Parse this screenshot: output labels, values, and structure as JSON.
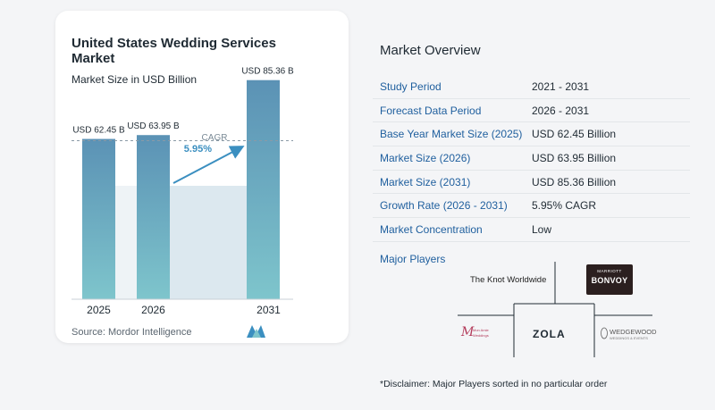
{
  "left_panel": {
    "title": "United States Wedding Services Market",
    "subtitle": "Market Size in USD Billion",
    "source": "Source: Mordor Intelligence",
    "cagr_label": "CAGR",
    "cagr_value": "5.95%"
  },
  "chart_data": {
    "type": "bar",
    "categories": [
      "2025",
      "2026",
      "2031"
    ],
    "values": [
      62.45,
      63.95,
      85.36
    ],
    "data_labels": [
      "USD 62.45 B",
      "USD 63.95 B",
      "USD 85.36 B"
    ],
    "title": "United States Wedding Services Market",
    "subtitle": "Market Size in USD Billion",
    "xlabel": "",
    "ylabel": "",
    "ylim": [
      0,
      90
    ],
    "grid": false,
    "annotation": "CAGR 5.95%",
    "colors": {
      "bar_top": "#5b92b5",
      "bar_bottom": "#7ec5cc",
      "arrow": "#3b8fc0",
      "band": "#dce8ef",
      "cagr_text": "#3b8fc0"
    }
  },
  "overview": {
    "title": "Market Overview",
    "rows": [
      {
        "label": "Study Period",
        "value": "2021 - 2031"
      },
      {
        "label": "Forecast Data Period",
        "value": "2026 - 2031"
      },
      {
        "label": "Base Year Market Size (2025)",
        "value": "USD 62.45 Billion"
      },
      {
        "label": "Market Size (2026)",
        "value": "USD 63.95 Billion"
      },
      {
        "label": "Market Size (2031)",
        "value": "USD 85.36 Billion"
      },
      {
        "label": "Growth Rate (2026 - 2031)",
        "value": "5.95% CAGR"
      },
      {
        "label": "Market Concentration",
        "value": "Low"
      }
    ]
  },
  "players": {
    "title": "Major Players",
    "names": [
      "The Knot Worldwide",
      "MARRIOTT BONVOY",
      "ZOLA",
      "WEDGEWOOD WEDDINGS & EVENTS",
      "Mon Amie Weddings"
    ]
  },
  "disclaimer": "*Disclaimer: Major Players sorted in no particular order"
}
